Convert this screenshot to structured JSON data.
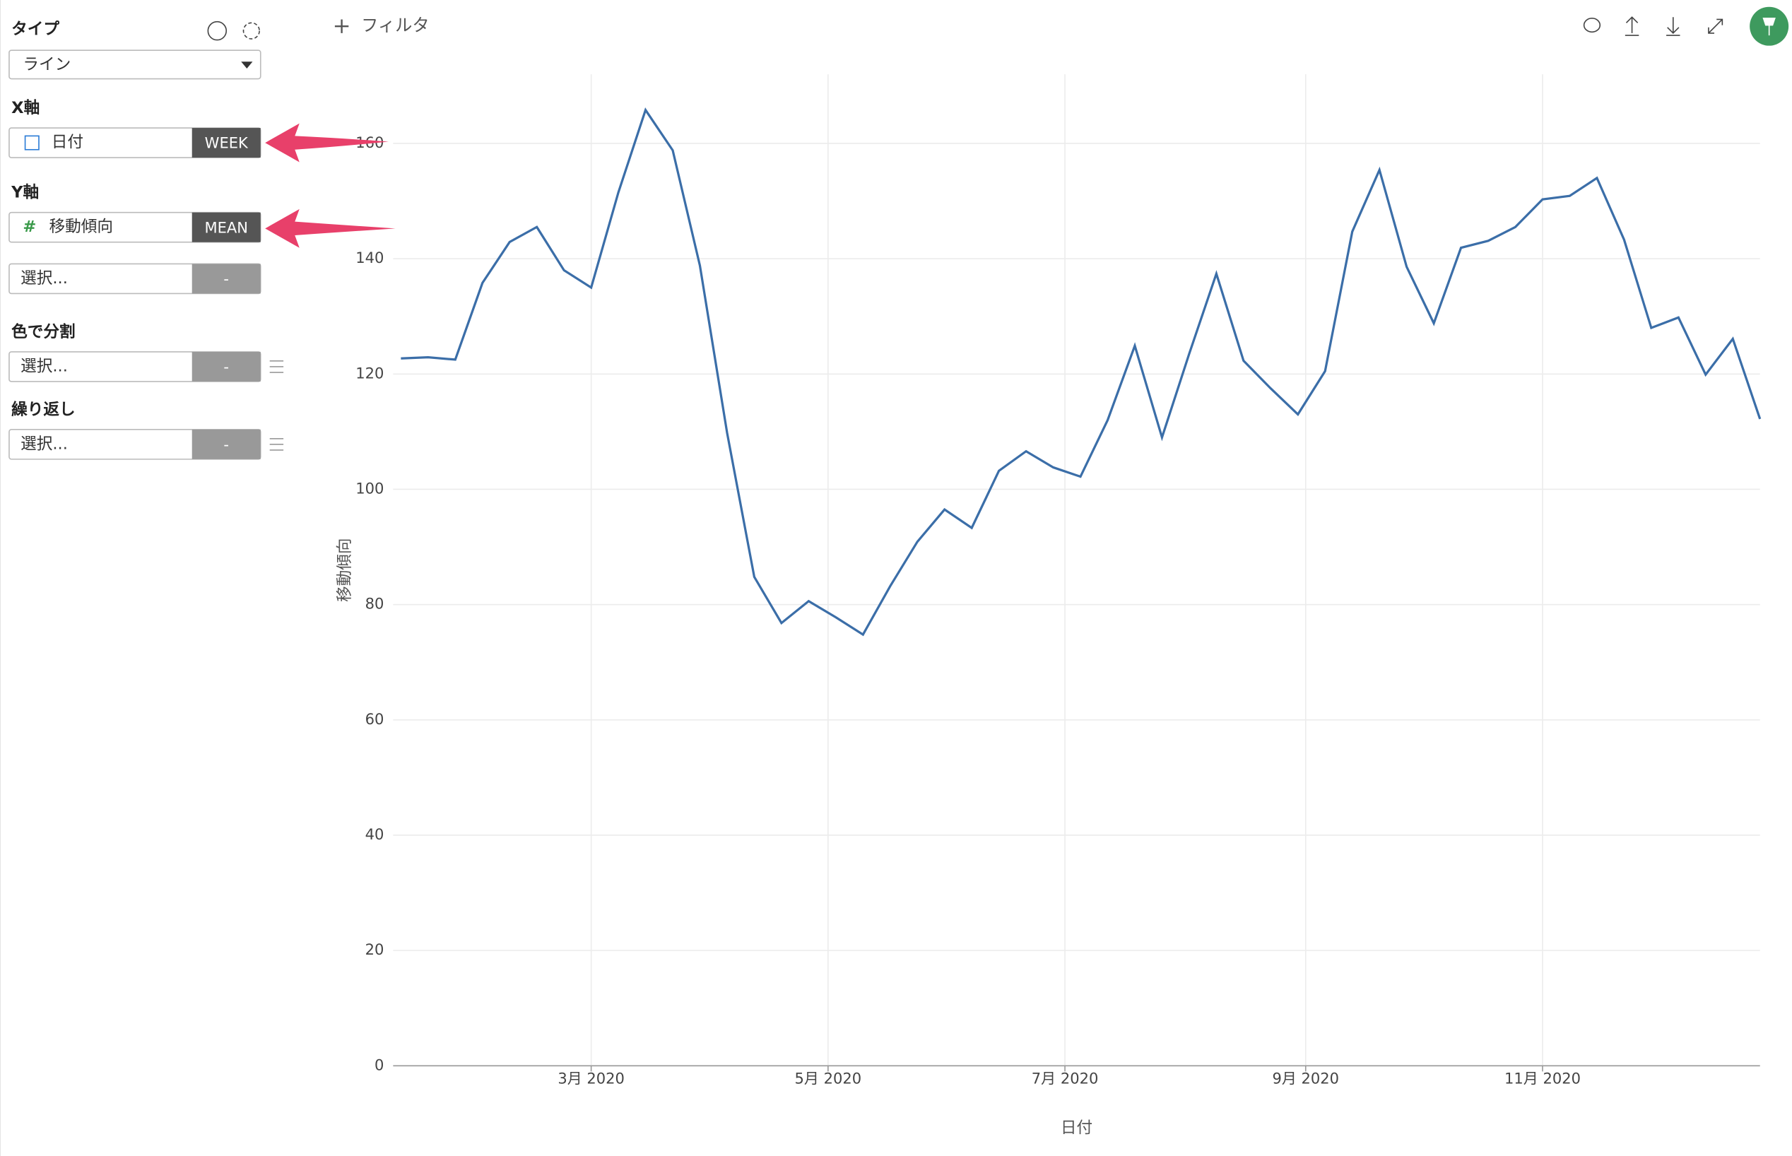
{
  "sidebar": {
    "type_label": "タイプ",
    "type_value": "ライン",
    "x_axis_label": "X軸",
    "x_field": "日付",
    "x_agg": "WEEK",
    "y_axis_label": "Y軸",
    "y_field": "移動傾向",
    "y_agg": "MEAN",
    "y2_field": "選択...",
    "y2_agg": "-",
    "color_label": "色で分割",
    "color_field": "選択...",
    "color_agg": "-",
    "repeat_label": "繰り返し",
    "repeat_field": "選択...",
    "repeat_agg": "-"
  },
  "toolbar": {
    "filter": "フィルタ"
  },
  "chart_data": {
    "type": "line",
    "x_label": "日付",
    "y_label": "移動傾向",
    "color": "#3b6ea8",
    "grid": true,
    "x": [
      11,
      18,
      25,
      32,
      39,
      46,
      53,
      60,
      67,
      74,
      81,
      88,
      95,
      102,
      109,
      116,
      123,
      130,
      137,
      144,
      151,
      158,
      165,
      172,
      179,
      186,
      193,
      200,
      207,
      214,
      221,
      228,
      235,
      242,
      249,
      256,
      263,
      270,
      277,
      284,
      291,
      298,
      305,
      312,
      319,
      326,
      333,
      340,
      347,
      354,
      361
    ],
    "values": [
      122.7,
      122.9,
      122.5,
      135.8,
      142.9,
      145.5,
      138,
      135,
      151.5,
      165.8,
      158.8,
      138.8,
      109.8,
      84.8,
      76.8,
      80.6,
      77.8,
      74.8,
      83.2,
      90.9,
      96.5,
      93.3,
      103.2,
      106.6,
      103.8,
      102.2,
      112,
      124.9,
      109,
      123.5,
      137.4,
      122.3,
      117.5,
      113,
      120.5,
      144.7,
      155.4,
      138.6,
      128.8,
      141.9,
      143.1,
      145.5,
      150.3,
      150.9,
      154,
      143.3,
      128,
      129.8,
      119.9,
      126.1,
      112.2
    ],
    "xlim": [
      9,
      361
    ],
    "xticks": [
      {
        "value": 60,
        "label": "3月 2020"
      },
      {
        "value": 121,
        "label": "5月 2020"
      },
      {
        "value": 182,
        "label": "7月 2020"
      },
      {
        "value": 244,
        "label": "9月 2020"
      },
      {
        "value": 305,
        "label": "11月 2020"
      }
    ],
    "ylim": [
      0,
      172
    ],
    "yticks": [
      0,
      20,
      40,
      60,
      80,
      100,
      120,
      140,
      160
    ]
  }
}
